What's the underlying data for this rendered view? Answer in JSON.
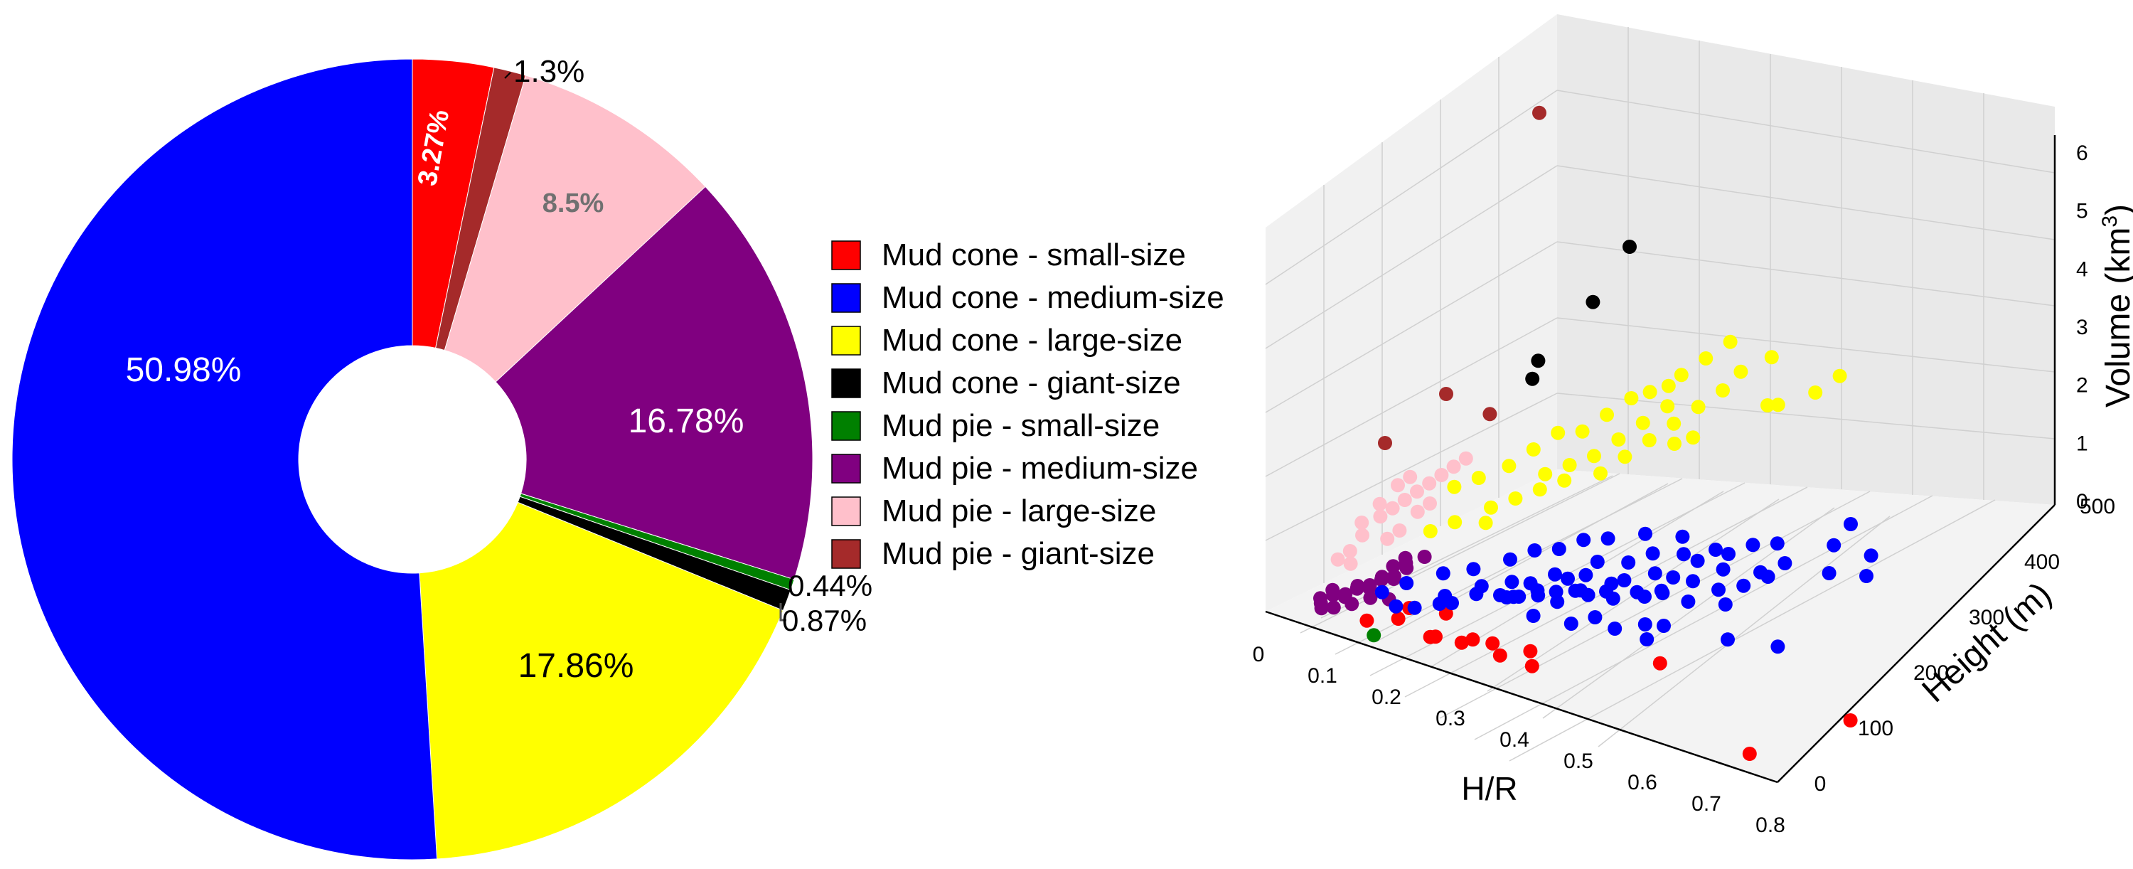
{
  "chart_data": [
    {
      "type": "pie",
      "variant": "donut",
      "slices": [
        {
          "label": "Mud cone - small-size",
          "value": 3.27,
          "value_label": "3.27%",
          "color": "#ff0000"
        },
        {
          "label": "Mud pie - giant-size",
          "value": 1.3,
          "value_label": "1.3%",
          "color": "#a52a2a"
        },
        {
          "label": "Mud pie - large-size",
          "value": 8.5,
          "value_label": "8.5%",
          "color": "#ffc0cb"
        },
        {
          "label": "Mud pie - medium-size",
          "value": 16.78,
          "value_label": "16.78%",
          "color": "#800080"
        },
        {
          "label": "Mud pie - small-size",
          "value": 0.44,
          "value_label": "0.44%",
          "color": "#008000"
        },
        {
          "label": "Mud cone - giant-size",
          "value": 0.87,
          "value_label": "0.87%",
          "color": "#000000"
        },
        {
          "label": "Mud cone - large-size",
          "value": 17.86,
          "value_label": "17.86%",
          "color": "#ffff00"
        },
        {
          "label": "Mud cone - medium-size",
          "value": 50.98,
          "value_label": "50.98%",
          "color": "#0000ff"
        }
      ],
      "legend": {
        "placement": "right",
        "entries": [
          {
            "label": "Mud cone - small-size",
            "color": "#ff0000"
          },
          {
            "label": "Mud cone - medium-size",
            "color": "#0000ff"
          },
          {
            "label": "Mud cone - large-size",
            "color": "#ffff00"
          },
          {
            "label": "Mud cone - giant-size",
            "color": "#000000"
          },
          {
            "label": "Mud pie - small-size",
            "color": "#008000"
          },
          {
            "label": "Mud pie - medium-size",
            "color": "#800080"
          },
          {
            "label": "Mud pie - large-size",
            "color": "#ffc0cb"
          },
          {
            "label": "Mud pie - giant-size",
            "color": "#a52a2a"
          }
        ]
      }
    },
    {
      "type": "scatter",
      "projection": "3d",
      "xlabel": "H/R",
      "ylabel": "Height (m)",
      "zlabel_main": "Volume (km",
      "zlabel_sup": "3",
      "zlabel_end": ")",
      "xlim": [
        0,
        0.8
      ],
      "ylim": [
        0,
        500
      ],
      "zlim": [
        0,
        6
      ],
      "xticks": [
        "0",
        "0.1",
        "0.2",
        "0.3",
        "0.4",
        "0.5",
        "0.6",
        "0.7",
        "0.8"
      ],
      "yticks": [
        "0",
        "100",
        "200",
        "300",
        "400",
        "500"
      ],
      "zticks": [
        "0",
        "1",
        "2",
        "3",
        "4",
        "5",
        "6"
      ],
      "grid": true,
      "series": [
        {
          "group": "Mud cone - small-size",
          "color": "#ff0000",
          "points": [
            [
              0.75,
              180,
              0
            ],
            [
              0.72,
              40,
              0
            ],
            [
              0.58,
              40,
              0.8
            ],
            [
              0.38,
              40,
              0.2
            ],
            [
              0.33,
              40,
              0.2
            ],
            [
              0.27,
              40,
              0.2
            ],
            [
              0.23,
              30,
              0.2
            ],
            [
              0.22,
              50,
              0.1
            ],
            [
              0.17,
              60,
              0.3
            ],
            [
              0.2,
              90,
              0.2
            ],
            [
              0.35,
              70,
              0.2
            ],
            [
              0.3,
              60,
              0.2
            ],
            [
              0.26,
              70,
              0.1
            ],
            [
              0.18,
              30,
              0.3
            ],
            [
              0.14,
              20,
              0.2
            ]
          ]
        },
        {
          "group": "Mud cone - medium-size",
          "color": "#0000ff",
          "points": [
            [
              0.55,
              400,
              1.2
            ],
            [
              0.62,
              350,
              0.9
            ],
            [
              0.58,
              330,
              0.9
            ],
            [
              0.5,
              300,
              0.8
            ],
            [
              0.45,
              300,
              0.9
            ],
            [
              0.42,
              280,
              0.8
            ],
            [
              0.4,
              260,
              0.6
            ],
            [
              0.38,
              300,
              0.7
            ],
            [
              0.35,
              280,
              0.7
            ],
            [
              0.48,
              250,
              0.7
            ],
            [
              0.46,
              220,
              0.6
            ],
            [
              0.35,
              200,
              0.5
            ],
            [
              0.32,
              180,
              0.5
            ],
            [
              0.3,
              220,
              0.5
            ],
            [
              0.28,
              160,
              0.4
            ],
            [
              0.26,
              140,
              0.4
            ],
            [
              0.24,
              150,
              0.3
            ],
            [
              0.22,
              120,
              0.4
            ],
            [
              0.2,
              100,
              0.3
            ],
            [
              0.18,
              110,
              0.3
            ],
            [
              0.3,
              240,
              0.6
            ],
            [
              0.33,
              260,
              0.6
            ],
            [
              0.36,
              220,
              0.6
            ],
            [
              0.39,
              240,
              0.7
            ],
            [
              0.42,
              220,
              0.6
            ],
            [
              0.44,
              250,
              0.7
            ],
            [
              0.25,
              180,
              0.4
            ],
            [
              0.27,
              200,
              0.5
            ],
            [
              0.29,
              200,
              0.5
            ],
            [
              0.31,
              160,
              0.4
            ],
            [
              0.34,
              180,
              0.5
            ],
            [
              0.37,
              190,
              0.5
            ],
            [
              0.41,
              200,
              0.6
            ],
            [
              0.46,
              280,
              0.8
            ],
            [
              0.51,
              260,
              0.8
            ],
            [
              0.53,
              280,
              0.9
            ],
            [
              0.4,
              160,
              0.3
            ],
            [
              0.45,
              160,
              0.3
            ],
            [
              0.35,
              140,
              0.3
            ],
            [
              0.3,
              130,
              0.3
            ],
            [
              0.16,
              80,
              0.2
            ],
            [
              0.14,
              70,
              0.2
            ],
            [
              0.19,
              90,
              0.3
            ],
            [
              0.21,
              140,
              0.4
            ],
            [
              0.23,
              170,
              0.4
            ],
            [
              0.52,
              320,
              0.9
            ],
            [
              0.56,
              360,
              1.1
            ],
            [
              0.6,
              380,
              1.0
            ],
            [
              0.43,
              300,
              0.9
            ],
            [
              0.47,
              320,
              1.0
            ],
            [
              0.49,
              340,
              1.0
            ],
            [
              0.36,
              320,
              0.8
            ],
            [
              0.32,
              300,
              0.8
            ],
            [
              0.28,
              280,
              0.7
            ],
            [
              0.26,
              260,
              0.7
            ],
            [
              0.24,
              240,
              0.6
            ],
            [
              0.22,
              220,
              0.6
            ],
            [
              0.2,
              200,
              0.5
            ],
            [
              0.17,
              170,
              0.4
            ],
            [
              0.15,
              140,
              0.4
            ],
            [
              0.12,
              110,
              0.3
            ],
            [
              0.1,
              90,
              0.2
            ],
            [
              0.38,
              220,
              0.5
            ],
            [
              0.4,
              240,
              0.5
            ],
            [
              0.34,
              220,
              0.5
            ],
            [
              0.31,
              200,
              0.4
            ],
            [
              0.29,
              180,
              0.4
            ],
            [
              0.27,
              170,
              0.4
            ],
            [
              0.25,
              160,
              0.3
            ],
            [
              0.23,
              150,
              0.3
            ],
            [
              0.5,
              240,
              0.6
            ],
            [
              0.54,
              200,
              0.4
            ],
            [
              0.6,
              220,
              0.4
            ],
            [
              0.44,
              200,
              0.3
            ],
            [
              0.42,
              190,
              0.3
            ],
            [
              0.36,
              170,
              0.3
            ]
          ]
        },
        {
          "group": "Mud cone - large-size",
          "color": "#ffff00",
          "points": [
            [
              0.42,
              400,
              2.4
            ],
            [
              0.38,
              380,
              3.2
            ],
            [
              0.36,
              360,
              3.0
            ],
            [
              0.34,
              340,
              2.8
            ],
            [
              0.32,
              340,
              2.6
            ],
            [
              0.3,
              330,
              2.5
            ],
            [
              0.28,
              320,
              2.4
            ],
            [
              0.26,
              300,
              2.2
            ],
            [
              0.24,
              280,
              2.0
            ],
            [
              0.22,
              260,
              2.0
            ],
            [
              0.2,
              240,
              1.8
            ],
            [
              0.18,
              220,
              1.6
            ],
            [
              0.16,
              190,
              1.5
            ],
            [
              0.14,
              170,
              1.4
            ],
            [
              0.4,
              440,
              2.2
            ],
            [
              0.44,
              460,
              2.4
            ],
            [
              0.46,
              480,
              2.6
            ],
            [
              0.3,
              360,
              2.2
            ],
            [
              0.28,
              340,
              2.0
            ],
            [
              0.26,
              320,
              1.8
            ],
            [
              0.24,
              300,
              1.6
            ],
            [
              0.22,
              280,
              1.5
            ],
            [
              0.2,
              260,
              1.4
            ],
            [
              0.35,
              400,
              2.4
            ],
            [
              0.33,
              380,
              2.2
            ],
            [
              0.31,
              360,
              2.0
            ],
            [
              0.29,
              340,
              1.8
            ],
            [
              0.27,
              320,
              1.6
            ],
            [
              0.25,
              300,
              1.4
            ],
            [
              0.36,
              420,
              2.6
            ],
            [
              0.39,
              440,
              2.8
            ],
            [
              0.34,
              360,
              1.9
            ],
            [
              0.32,
              350,
              1.8
            ],
            [
              0.21,
              240,
              1.3
            ],
            [
              0.19,
              220,
              1.2
            ],
            [
              0.17,
              200,
              1.1
            ],
            [
              0.23,
              260,
              1.4
            ],
            [
              0.18,
              180,
              1.0
            ],
            [
              0.15,
              160,
              1.0
            ],
            [
              0.13,
              140,
              0.9
            ]
          ]
        },
        {
          "group": "Mud cone - giant-size",
          "color": "#000000",
          "points": [
            [
              0.25,
              350,
              4.2
            ],
            [
              0.22,
              320,
              3.5
            ],
            [
              0.18,
              260,
              2.6
            ],
            [
              0.18,
              270,
              2.8
            ]
          ]
        },
        {
          "group": "Mud pie - small-size",
          "color": "#008000",
          "points": [
            [
              0.16,
              10,
              0.1
            ]
          ]
        },
        {
          "group": "Mud pie - medium-size",
          "color": "#800080",
          "points": [
            [
              0.05,
              40,
              0.1
            ],
            [
              0.06,
              50,
              0.2
            ],
            [
              0.07,
              60,
              0.2
            ],
            [
              0.08,
              70,
              0.3
            ],
            [
              0.09,
              80,
              0.3
            ],
            [
              0.1,
              90,
              0.4
            ],
            [
              0.11,
              100,
              0.4
            ],
            [
              0.12,
              110,
              0.5
            ],
            [
              0.06,
              70,
              0.1
            ],
            [
              0.07,
              80,
              0.2
            ],
            [
              0.08,
              90,
              0.2
            ],
            [
              0.09,
              100,
              0.3
            ],
            [
              0.1,
              110,
              0.3
            ],
            [
              0.05,
              60,
              0.2
            ],
            [
              0.04,
              50,
              0.1
            ],
            [
              0.08,
              60,
              0.1
            ],
            [
              0.1,
              70,
              0.2
            ],
            [
              0.12,
              80,
              0.2
            ],
            [
              0.07,
              40,
              0.1
            ],
            [
              0.11,
              120,
              0.5
            ],
            [
              0.13,
              130,
              0.6
            ],
            [
              0.06,
              30,
              0.1
            ],
            [
              0.09,
              120,
              0.4
            ],
            [
              0.1,
              130,
              0.5
            ]
          ]
        },
        {
          "group": "Mud pie - large-size",
          "color": "#ffc0cb",
          "points": [
            [
              0.05,
              90,
              0.6
            ],
            [
              0.06,
              100,
              0.8
            ],
            [
              0.07,
              120,
              1.0
            ],
            [
              0.08,
              130,
              1.1
            ],
            [
              0.09,
              140,
              1.2
            ],
            [
              0.1,
              150,
              1.3
            ],
            [
              0.11,
              160,
              1.4
            ],
            [
              0.12,
              170,
              1.5
            ],
            [
              0.04,
              80,
              0.5
            ],
            [
              0.05,
              110,
              0.9
            ],
            [
              0.06,
              130,
              1.1
            ],
            [
              0.07,
              150,
              1.3
            ],
            [
              0.08,
              160,
              1.4
            ],
            [
              0.13,
              180,
              1.6
            ],
            [
              0.14,
              190,
              1.7
            ],
            [
              0.09,
              110,
              0.8
            ],
            [
              0.1,
              120,
              0.9
            ],
            [
              0.11,
              140,
              1.1
            ],
            [
              0.12,
              150,
              1.2
            ],
            [
              0.06,
              80,
              0.5
            ]
          ]
        },
        {
          "group": "Mud pie - giant-size",
          "color": "#a52a2a",
          "points": [
            [
              0.2,
              250,
              6.2
            ],
            [
              0.05,
              150,
              1.8
            ],
            [
              0.1,
              200,
              2.4
            ],
            [
              0.15,
              220,
              2.2
            ]
          ]
        }
      ]
    }
  ]
}
